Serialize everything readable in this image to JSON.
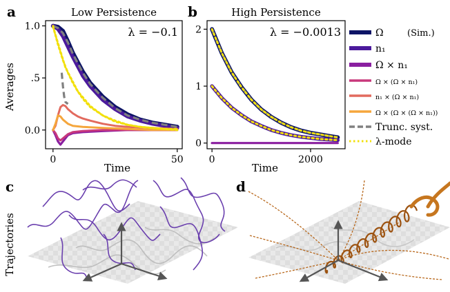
{
  "panels": {
    "a": {
      "letter": "a",
      "title": "Low Persistence",
      "lambda": "λ = −0.1"
    },
    "b": {
      "letter": "b",
      "title": "High Persistence",
      "lambda": "λ = −0.0013"
    },
    "c": {
      "letter": "c"
    },
    "d": {
      "letter": "d"
    }
  },
  "shared": {
    "ylabel": "Averages",
    "xlabel": "Time",
    "trajectories_label": "Trajectories"
  },
  "legend": [
    {
      "label": "Ω",
      "suffix": "(Sim.)",
      "color": "#0d1466",
      "style": "solid",
      "size": "large"
    },
    {
      "label": "n₁",
      "color": "#4b1a9c",
      "style": "solid",
      "size": "large"
    },
    {
      "label": "Ω × n₁",
      "color": "#8a1fa0",
      "style": "solid",
      "size": "large"
    },
    {
      "label": "Ω × (Ω × n₁)",
      "color": "#c8387c",
      "style": "solid",
      "size": "small"
    },
    {
      "label": "n₁ × (Ω × n₁)",
      "color": "#e26a5e",
      "style": "solid",
      "size": "small"
    },
    {
      "label": "Ω × (Ω × (Ω × n₁))",
      "color": "#f5a63c",
      "style": "solid",
      "size": "small"
    },
    {
      "label": "Trunc. syst.",
      "color": "#808080",
      "style": "dashed",
      "size": "large"
    },
    {
      "label": "λ-mode",
      "color": "#f2e00c",
      "style": "dotted",
      "size": "large"
    }
  ],
  "chart_data": [
    {
      "type": "line",
      "panel": "a",
      "title": "Low Persistence",
      "xlabel": "Time",
      "ylabel": "Averages",
      "xlim": [
        -3,
        52
      ],
      "ylim": [
        -0.18,
        1.05
      ],
      "xticks": [
        0,
        50
      ],
      "xtick_labels": [
        "0",
        "50"
      ],
      "yticks": [
        0.0,
        0.5,
        1.0
      ],
      "ytick_labels": [
        "0.0",
        ".5",
        "1.0"
      ],
      "series": [
        {
          "name": "Ω",
          "color": "#0d1466",
          "x": [
            0,
            2,
            4,
            6,
            8,
            10,
            12,
            15,
            20,
            25,
            30,
            35,
            40,
            45,
            50
          ],
          "y": [
            1.0,
            0.99,
            0.95,
            0.85,
            0.74,
            0.65,
            0.56,
            0.45,
            0.32,
            0.22,
            0.15,
            0.1,
            0.07,
            0.05,
            0.03
          ]
        },
        {
          "name": "n₁",
          "color": "#4b1a9c",
          "x": [
            0,
            2,
            4,
            6,
            8,
            10,
            12,
            15,
            20,
            25,
            30,
            35,
            40,
            45,
            50
          ],
          "y": [
            1.0,
            0.97,
            0.9,
            0.8,
            0.7,
            0.61,
            0.52,
            0.42,
            0.29,
            0.2,
            0.13,
            0.09,
            0.06,
            0.04,
            0.02
          ]
        },
        {
          "name": "Ω × n₁",
          "color": "#8a1fa0",
          "x": [
            0,
            1,
            2,
            3,
            4,
            6,
            8,
            12,
            20,
            30,
            40,
            50
          ],
          "y": [
            0.0,
            -0.05,
            -0.11,
            -0.14,
            -0.11,
            -0.05,
            -0.03,
            -0.02,
            -0.01,
            0.0,
            0.0,
            0.0
          ]
        },
        {
          "name": "Ω × (Ω × n₁)",
          "color": "#c8387c",
          "x": [
            0,
            1,
            2,
            3,
            4,
            6,
            8,
            12,
            20,
            30,
            40,
            50
          ],
          "y": [
            0.0,
            -0.03,
            -0.08,
            -0.1,
            -0.08,
            -0.04,
            -0.02,
            -0.01,
            0.0,
            0.0,
            0.0,
            0.0
          ]
        },
        {
          "name": "n₁ × (Ω × n₁)",
          "color": "#e26a5e",
          "x": [
            0,
            1,
            2,
            3,
            4,
            5,
            6,
            8,
            10,
            12,
            15,
            20,
            25,
            30,
            40,
            50
          ],
          "y": [
            0.0,
            0.04,
            0.14,
            0.22,
            0.24,
            0.23,
            0.2,
            0.16,
            0.13,
            0.11,
            0.09,
            0.06,
            0.04,
            0.03,
            0.02,
            0.01
          ]
        },
        {
          "name": "Ω × (Ω × (Ω × n₁))",
          "color": "#f5a63c",
          "x": [
            0,
            1,
            2,
            3,
            4,
            6,
            8,
            12,
            20,
            30,
            40,
            50
          ],
          "y": [
            0.0,
            0.06,
            0.14,
            0.13,
            0.1,
            0.06,
            0.04,
            0.03,
            0.02,
            0.01,
            0.0,
            0.0
          ]
        },
        {
          "name": "Trunc. syst.",
          "color": "#808080",
          "dash": "dashed",
          "x": [
            0,
            2,
            4,
            6,
            8,
            10,
            12,
            15,
            20,
            25,
            30,
            35,
            40,
            45,
            50
          ],
          "y": [
            1.0,
            0.98,
            0.93,
            0.84,
            0.73,
            0.64,
            0.55,
            0.44,
            0.31,
            0.21,
            0.14,
            0.1,
            0.07,
            0.05,
            0.03
          ]
        },
        {
          "name": "Trunc. syst.",
          "color": "#808080",
          "dash": "dashed",
          "x": [
            3.5,
            4,
            4.5,
            5,
            6
          ],
          "y": [
            0.55,
            0.42,
            0.32,
            0.27,
            0.25
          ]
        },
        {
          "name": "λ-mode",
          "color": "#f2e00c",
          "dash": "dotted",
          "x": [
            0,
            2,
            4,
            6,
            8,
            10,
            12,
            15,
            20,
            25,
            30,
            35,
            40,
            45,
            50
          ],
          "y": [
            1.0,
            0.82,
            0.67,
            0.55,
            0.45,
            0.37,
            0.3,
            0.22,
            0.14,
            0.08,
            0.05,
            0.03,
            0.02,
            0.01,
            0.01
          ]
        },
        {
          "name": "λ-mode",
          "color": "#f2e00c",
          "dash": "dotted",
          "x": [
            0,
            5,
            10,
            15,
            20,
            25,
            30,
            35,
            40,
            45,
            50
          ],
          "y": [
            0.99,
            0.6,
            0.37,
            0.23,
            0.14,
            0.09,
            0.05,
            0.03,
            0.02,
            0.01,
            0.0
          ]
        }
      ]
    },
    {
      "type": "line",
      "panel": "b",
      "title": "High Persistence",
      "xlabel": "Time",
      "xlim": [
        -100,
        2700
      ],
      "ylim": [
        -0.1,
        2.15
      ],
      "xticks": [
        0,
        2000
      ],
      "xtick_labels": [
        "0",
        "2000"
      ],
      "yticks": [
        0,
        1,
        2
      ],
      "ytick_labels": [
        "0",
        "1",
        "2"
      ],
      "series": [
        {
          "name": "Ω",
          "color": "#0d1466",
          "x": [
            0,
            200,
            400,
            600,
            800,
            1000,
            1200,
            1400,
            1600,
            1800,
            2000,
            2200,
            2400,
            2550
          ],
          "y": [
            2.0,
            1.58,
            1.24,
            0.98,
            0.76,
            0.59,
            0.46,
            0.36,
            0.28,
            0.22,
            0.18,
            0.15,
            0.12,
            0.1
          ]
        },
        {
          "name": "n₁",
          "color": "#4b1a9c",
          "x": [
            0,
            200,
            400,
            600,
            800,
            1000,
            1200,
            1400,
            1600,
            1800,
            2000,
            2200,
            2400,
            2550
          ],
          "y": [
            1.0,
            0.79,
            0.62,
            0.49,
            0.38,
            0.3,
            0.23,
            0.18,
            0.14,
            0.11,
            0.09,
            0.07,
            0.06,
            0.05
          ]
        },
        {
          "name": "Ω × n₁",
          "color": "#8a1fa0",
          "x": [
            0,
            2550
          ],
          "y": [
            0.0,
            0.0
          ]
        },
        {
          "name": "Trunc. syst.",
          "color": "#808080",
          "dash": "dashed",
          "x": [
            0,
            200,
            400,
            600,
            800,
            1000,
            1200,
            1400,
            1600,
            1800,
            2000,
            2200,
            2400,
            2550
          ],
          "y": [
            2.0,
            1.58,
            1.24,
            0.98,
            0.76,
            0.59,
            0.46,
            0.36,
            0.28,
            0.22,
            0.18,
            0.15,
            0.12,
            0.1
          ]
        },
        {
          "name": "λ-mode",
          "color": "#f2e00c",
          "dash": "dotted",
          "x": [
            0,
            200,
            400,
            600,
            800,
            1000,
            1200,
            1400,
            1600,
            1800,
            2000,
            2200,
            2400,
            2550
          ],
          "y": [
            2.0,
            1.58,
            1.24,
            0.98,
            0.76,
            0.59,
            0.46,
            0.36,
            0.28,
            0.22,
            0.18,
            0.15,
            0.12,
            0.1
          ]
        },
        {
          "name": "λ-mode",
          "color": "#f2e00c",
          "dash": "dotted",
          "x": [
            0,
            200,
            400,
            600,
            800,
            1000,
            1200,
            1400,
            1600,
            1800,
            2000,
            2200,
            2400,
            2550
          ],
          "y": [
            1.0,
            0.79,
            0.62,
            0.49,
            0.38,
            0.3,
            0.23,
            0.18,
            0.14,
            0.11,
            0.09,
            0.07,
            0.06,
            0.05
          ]
        }
      ]
    }
  ]
}
